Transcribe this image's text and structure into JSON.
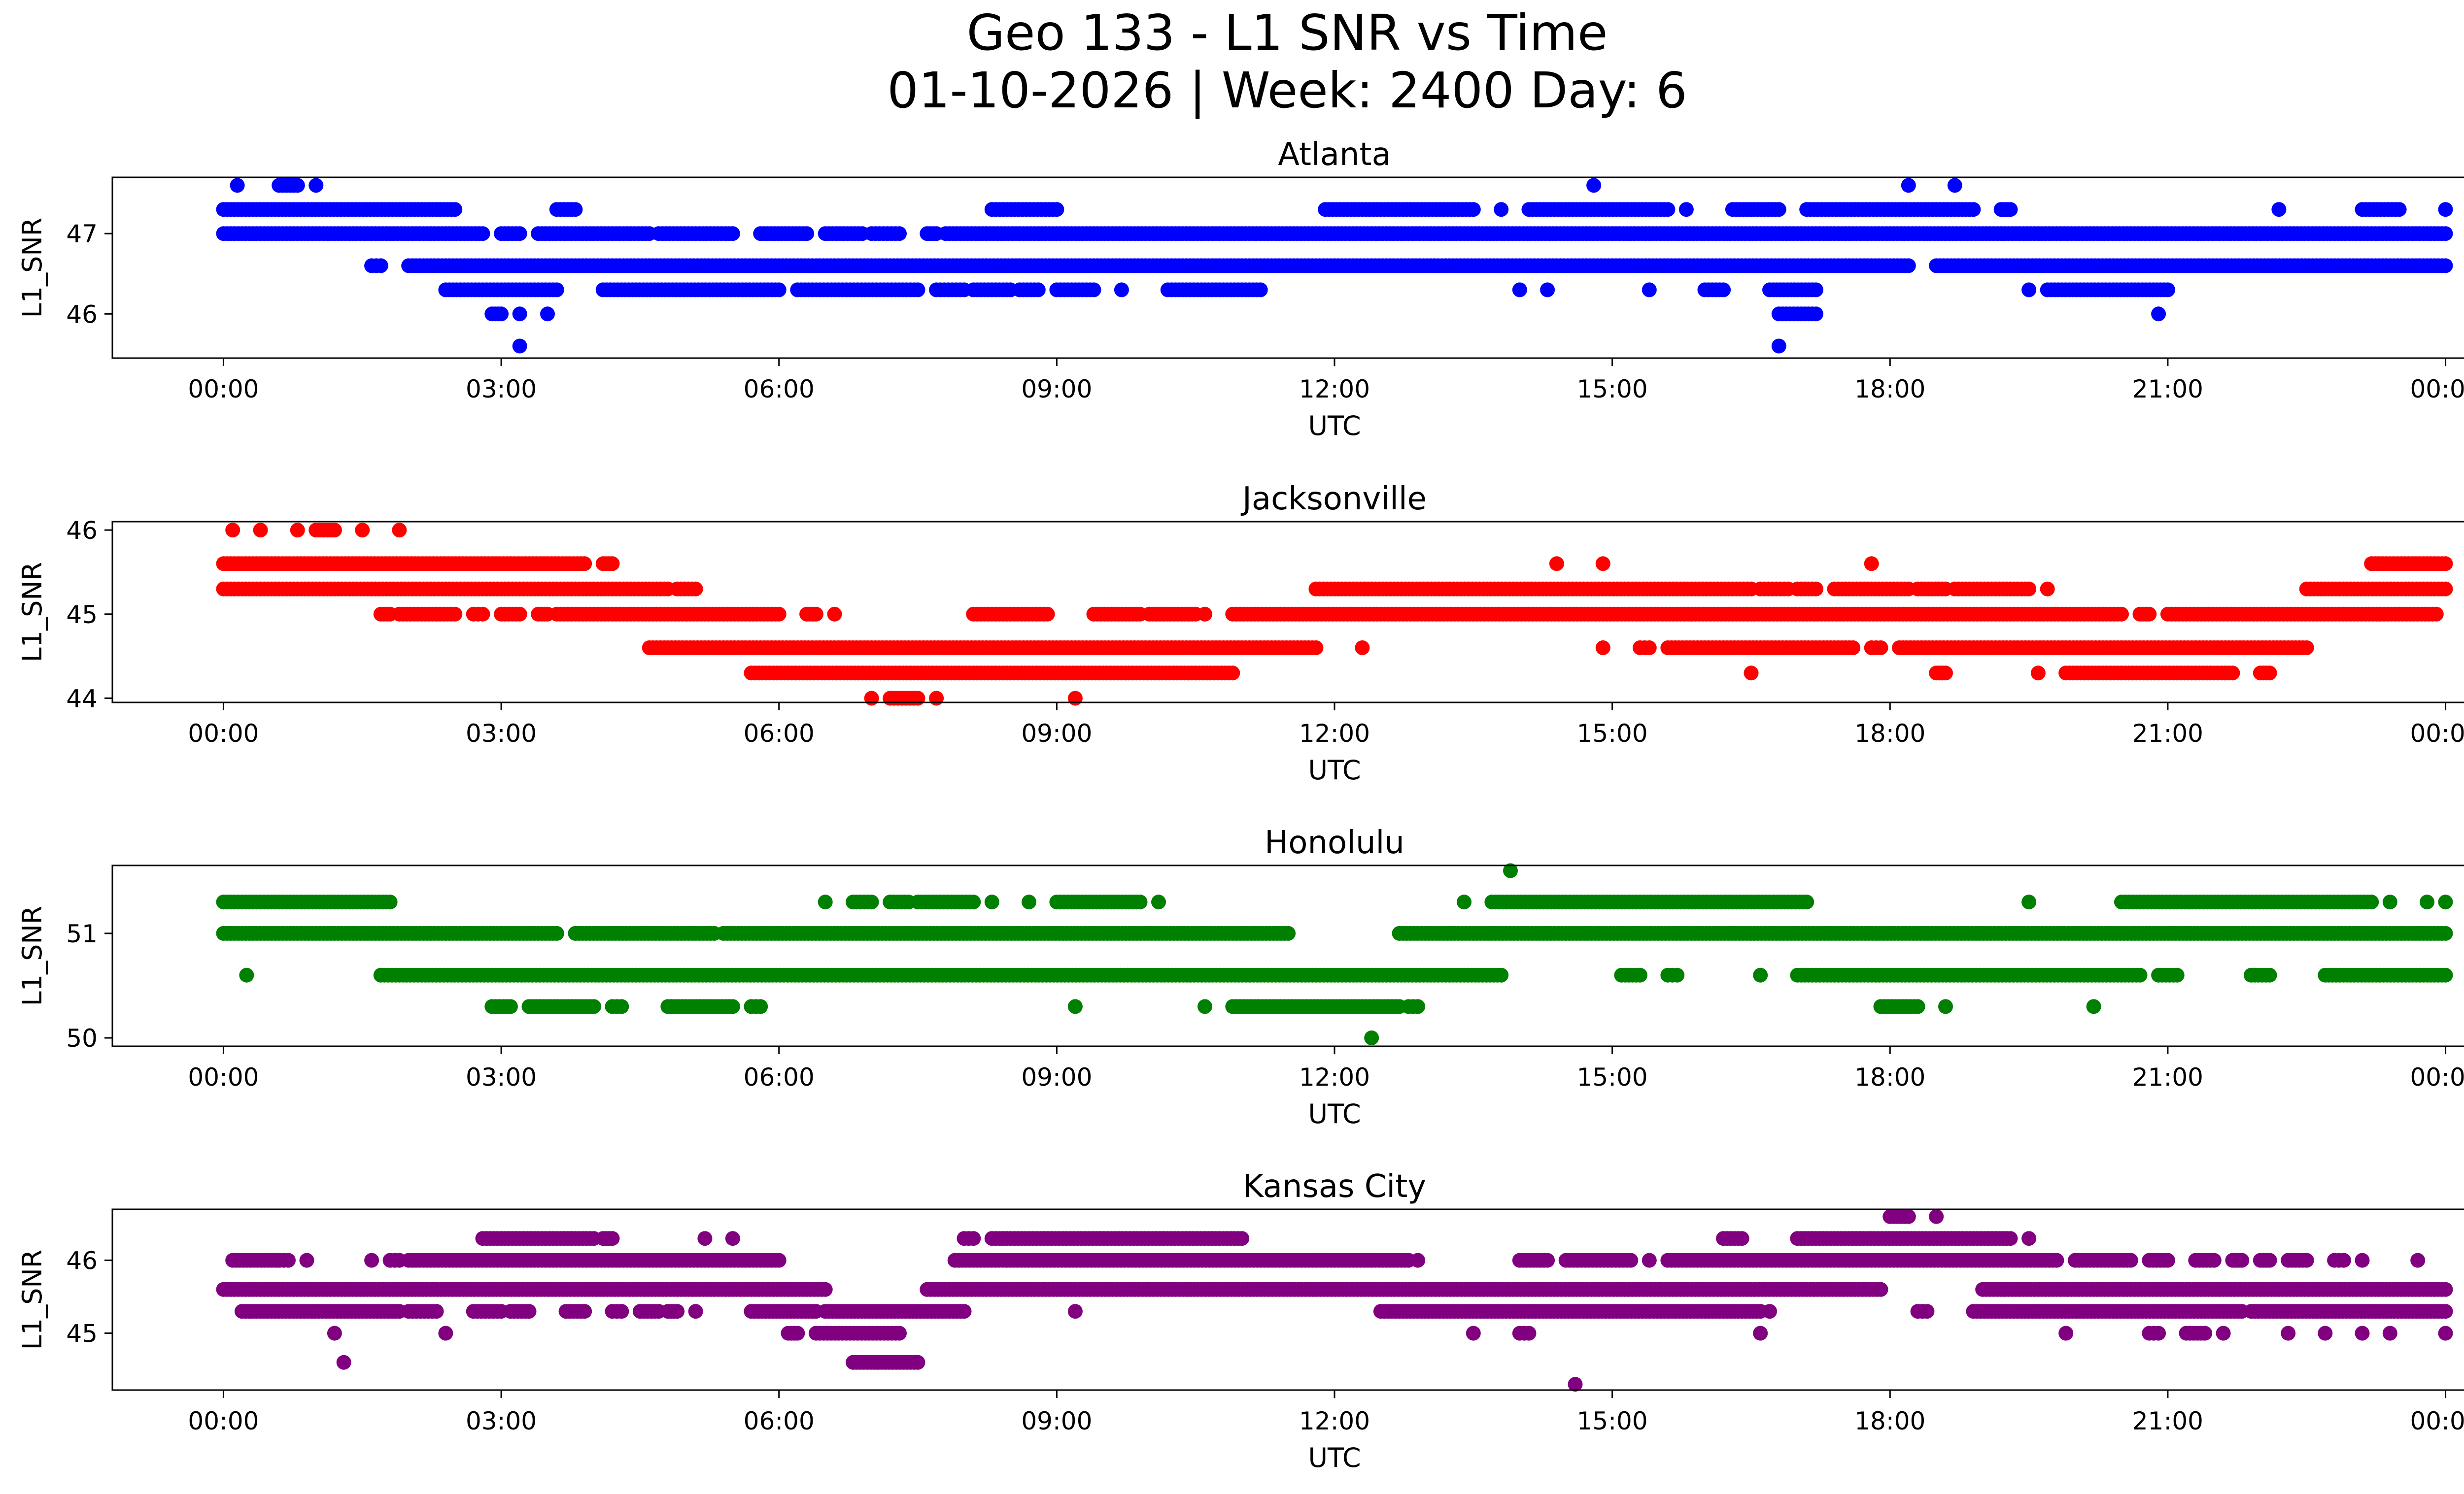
{
  "figure": {
    "title_line1": "Geo 133 - L1 SNR vs Time",
    "title_line2": "01-10-2026 | Week: 2400 Day: 6"
  },
  "chart_data": [
    {
      "type": "scatter",
      "title": "Atlanta",
      "xlabel": "UTC",
      "ylabel": "L1_SNR",
      "color": "#0000ff",
      "xlim_hours": [
        -1.2,
        25.2
      ],
      "ylim": [
        45.45,
        47.7
      ],
      "yticks": [
        46,
        47
      ],
      "xtick_hours": [
        0,
        3,
        6,
        9,
        12,
        15,
        18,
        21,
        24
      ],
      "xtick_labels": [
        "00:00",
        "03:00",
        "06:00",
        "09:00",
        "12:00",
        "15:00",
        "18:00",
        "21:00",
        "00:00"
      ],
      "level_step": 0.3,
      "series": [
        {
          "y": 47.6,
          "segments": [
            [
              0.15,
              0.15
            ],
            [
              0.6,
              0.8
            ],
            [
              1.0,
              1.0
            ],
            [
              14.8,
              14.8
            ],
            [
              18.2,
              18.2
            ],
            [
              18.7,
              18.7
            ]
          ]
        },
        {
          "y": 47.3,
          "segments": [
            [
              0,
              2.5
            ],
            [
              3.6,
              3.8
            ],
            [
              8.3,
              9.0
            ],
            [
              11.9,
              13.5
            ],
            [
              13.8,
              13.8
            ],
            [
              14.1,
              15.6
            ],
            [
              15.8,
              15.8
            ],
            [
              16.3,
              16.8
            ],
            [
              17.1,
              18.9
            ],
            [
              19.2,
              19.3
            ],
            [
              22.2,
              22.2
            ],
            [
              23.1,
              23.5
            ],
            [
              24,
              24
            ]
          ]
        },
        {
          "y": 47.0,
          "segments": [
            [
              0,
              2.8
            ],
            [
              3.0,
              3.2
            ],
            [
              3.4,
              4.6
            ],
            [
              4.7,
              5.5
            ],
            [
              5.8,
              6.3
            ],
            [
              6.5,
              6.9
            ],
            [
              7.0,
              7.3
            ],
            [
              7.6,
              7.7
            ],
            [
              7.8,
              24
            ]
          ]
        },
        {
          "y": 46.6,
          "segments": [
            [
              1.6,
              1.7
            ],
            [
              2.0,
              18.2
            ],
            [
              18.5,
              24
            ]
          ]
        },
        {
          "y": 46.3,
          "segments": [
            [
              2.4,
              3.6
            ],
            [
              4.1,
              6.0
            ],
            [
              6.2,
              7.5
            ],
            [
              7.7,
              8.0
            ],
            [
              8.1,
              8.5
            ],
            [
              8.6,
              8.8
            ],
            [
              9.0,
              9.4
            ],
            [
              9.7,
              9.7
            ],
            [
              10.2,
              11.2
            ],
            [
              14.0,
              14.0
            ],
            [
              14.3,
              14.3
            ],
            [
              15.4,
              15.4
            ],
            [
              16.0,
              16.2
            ],
            [
              16.7,
              17.2
            ],
            [
              19.5,
              19.5
            ],
            [
              19.7,
              21.0
            ]
          ]
        },
        {
          "y": 46.0,
          "segments": [
            [
              2.9,
              3.0
            ],
            [
              3.2,
              3.2
            ],
            [
              3.5,
              3.5
            ],
            [
              16.8,
              17.2
            ],
            [
              20.9,
              20.9
            ]
          ]
        },
        {
          "y": 45.6,
          "segments": [
            [
              3.2,
              3.2
            ],
            [
              16.8,
              16.8
            ]
          ]
        }
      ]
    },
    {
      "type": "scatter",
      "title": "Jacksonville",
      "xlabel": "UTC",
      "ylabel": "L1_SNR",
      "color": "#ff0000",
      "xlim_hours": [
        -1.2,
        25.2
      ],
      "ylim": [
        43.95,
        46.1
      ],
      "yticks": [
        44,
        45,
        46
      ],
      "xtick_hours": [
        0,
        3,
        6,
        9,
        12,
        15,
        18,
        21,
        24
      ],
      "xtick_labels": [
        "00:00",
        "03:00",
        "06:00",
        "09:00",
        "12:00",
        "15:00",
        "18:00",
        "21:00",
        "00:00"
      ],
      "level_step": 0.3,
      "series": [
        {
          "y": 46.0,
          "segments": [
            [
              0.1,
              0.1
            ],
            [
              0.4,
              0.4
            ],
            [
              0.8,
              0.8
            ],
            [
              1.0,
              1.2
            ],
            [
              1.5,
              1.5
            ],
            [
              1.9,
              1.9
            ]
          ]
        },
        {
          "y": 45.6,
          "segments": [
            [
              0,
              3.9
            ],
            [
              4.1,
              4.2
            ],
            [
              14.4,
              14.4
            ],
            [
              14.9,
              14.9
            ],
            [
              17.8,
              17.8
            ],
            [
              23.2,
              24
            ]
          ]
        },
        {
          "y": 45.3,
          "segments": [
            [
              0,
              4.8
            ],
            [
              4.9,
              5.1
            ],
            [
              11.8,
              16.5
            ],
            [
              16.6,
              16.9
            ],
            [
              17.0,
              17.2
            ],
            [
              17.4,
              18.2
            ],
            [
              18.3,
              18.6
            ],
            [
              18.7,
              19.5
            ],
            [
              19.7,
              19.7
            ],
            [
              22.5,
              24
            ]
          ]
        },
        {
          "y": 45.0,
          "segments": [
            [
              1.7,
              1.8
            ],
            [
              1.9,
              2.5
            ],
            [
              2.7,
              2.8
            ],
            [
              3.0,
              3.2
            ],
            [
              3.4,
              3.5
            ],
            [
              3.6,
              6.0
            ],
            [
              6.3,
              6.4
            ],
            [
              6.6,
              6.6
            ],
            [
              8.1,
              8.9
            ],
            [
              9.4,
              9.9
            ],
            [
              10.0,
              10.5
            ],
            [
              10.6,
              10.6
            ],
            [
              10.9,
              20.5
            ],
            [
              20.7,
              20.8
            ],
            [
              21.0,
              23.9
            ]
          ]
        },
        {
          "y": 44.6,
          "segments": [
            [
              4.6,
              11.8
            ],
            [
              12.3,
              12.3
            ],
            [
              14.9,
              14.9
            ],
            [
              15.3,
              15.4
            ],
            [
              15.6,
              17.6
            ],
            [
              17.8,
              17.9
            ],
            [
              18.1,
              22.5
            ]
          ]
        },
        {
          "y": 44.3,
          "segments": [
            [
              5.7,
              10.9
            ],
            [
              16.5,
              16.5
            ],
            [
              18.5,
              18.6
            ],
            [
              19.6,
              19.6
            ],
            [
              19.9,
              21.7
            ],
            [
              22.0,
              22.1
            ]
          ]
        },
        {
          "y": 44.0,
          "segments": [
            [
              7.0,
              7.0
            ],
            [
              7.2,
              7.5
            ],
            [
              7.7,
              7.7
            ],
            [
              9.2,
              9.2
            ]
          ]
        }
      ]
    },
    {
      "type": "scatter",
      "title": "Honolulu",
      "xlabel": "UTC",
      "ylabel": "L1_SNR",
      "color": "#008000",
      "xlim_hours": [
        -1.2,
        25.2
      ],
      "ylim": [
        49.92,
        51.65
      ],
      "yticks": [
        50,
        51
      ],
      "xtick_hours": [
        0,
        3,
        6,
        9,
        12,
        15,
        18,
        21,
        24
      ],
      "xtick_labels": [
        "00:00",
        "03:00",
        "06:00",
        "09:00",
        "12:00",
        "15:00",
        "18:00",
        "21:00",
        "00:00"
      ],
      "level_step": 0.3,
      "series": [
        {
          "y": 51.6,
          "segments": [
            [
              13.9,
              13.9
            ]
          ]
        },
        {
          "y": 51.3,
          "segments": [
            [
              0,
              1.8
            ],
            [
              6.5,
              6.5
            ],
            [
              6.8,
              7.0
            ],
            [
              7.2,
              7.4
            ],
            [
              7.5,
              8.1
            ],
            [
              8.3,
              8.3
            ],
            [
              8.7,
              8.7
            ],
            [
              9.0,
              9.9
            ],
            [
              10.1,
              10.1
            ],
            [
              13.4,
              13.4
            ],
            [
              13.7,
              17.1
            ],
            [
              19.5,
              19.5
            ],
            [
              20.5,
              23.2
            ],
            [
              23.4,
              23.4
            ],
            [
              23.8,
              23.8
            ],
            [
              24,
              24
            ]
          ]
        },
        {
          "y": 51.0,
          "segments": [
            [
              0,
              3.6
            ],
            [
              3.8,
              5.3
            ],
            [
              5.4,
              11.5
            ],
            [
              12.7,
              24
            ]
          ]
        },
        {
          "y": 50.6,
          "segments": [
            [
              0.25,
              0.25
            ],
            [
              1.7,
              13.8
            ],
            [
              15.1,
              15.3
            ],
            [
              15.6,
              15.7
            ],
            [
              16.6,
              16.6
            ],
            [
              17.0,
              20.7
            ],
            [
              20.9,
              21.1
            ],
            [
              21.9,
              22.1
            ],
            [
              22.7,
              24
            ]
          ]
        },
        {
          "y": 50.3,
          "segments": [
            [
              2.9,
              3.1
            ],
            [
              3.3,
              4.0
            ],
            [
              4.2,
              4.3
            ],
            [
              4.8,
              5.5
            ],
            [
              5.7,
              5.8
            ],
            [
              9.2,
              9.2
            ],
            [
              10.6,
              10.6
            ],
            [
              10.9,
              12.7
            ],
            [
              12.8,
              12.9
            ],
            [
              17.9,
              18.3
            ],
            [
              18.6,
              18.6
            ],
            [
              20.2,
              20.2
            ]
          ]
        },
        {
          "y": 50.0,
          "segments": [
            [
              12.4,
              12.4
            ]
          ]
        }
      ]
    },
    {
      "type": "scatter",
      "title": "Kansas City",
      "xlabel": "UTC",
      "ylabel": "L1_SNR",
      "color": "#800080",
      "xlim_hours": [
        -1.2,
        25.2
      ],
      "ylim": [
        44.22,
        46.7
      ],
      "yticks": [
        45,
        46
      ],
      "xtick_hours": [
        0,
        3,
        6,
        9,
        12,
        15,
        18,
        21,
        24
      ],
      "xtick_labels": [
        "00:00",
        "03:00",
        "06:00",
        "09:00",
        "12:00",
        "15:00",
        "18:00",
        "21:00",
        "00:00"
      ],
      "level_step": 0.3,
      "series": [
        {
          "y": 46.6,
          "segments": [
            [
              18.0,
              18.2
            ],
            [
              18.5,
              18.5
            ]
          ]
        },
        {
          "y": 46.3,
          "segments": [
            [
              2.8,
              4.0
            ],
            [
              4.1,
              4.2
            ],
            [
              5.2,
              5.2
            ],
            [
              5.5,
              5.5
            ],
            [
              8.0,
              8.1
            ],
            [
              8.3,
              11.0
            ],
            [
              16.2,
              16.4
            ],
            [
              17.0,
              19.3
            ],
            [
              19.5,
              19.5
            ]
          ]
        },
        {
          "y": 46.0,
          "segments": [
            [
              0.1,
              0.6
            ],
            [
              0.6,
              0.7
            ],
            [
              0.9,
              0.9
            ],
            [
              1.6,
              1.6
            ],
            [
              1.8,
              1.9
            ],
            [
              2.0,
              6.0
            ],
            [
              7.9,
              12.8
            ],
            [
              12.9,
              12.9
            ],
            [
              14.0,
              14.3
            ],
            [
              14.5,
              15.2
            ],
            [
              15.4,
              15.4
            ],
            [
              15.6,
              19.8
            ],
            [
              20.0,
              20.6
            ],
            [
              20.8,
              21.0
            ],
            [
              21.3,
              21.5
            ],
            [
              21.7,
              21.8
            ],
            [
              22.0,
              22.1
            ],
            [
              22.3,
              22.5
            ],
            [
              22.8,
              22.9
            ],
            [
              23.1,
              23.1
            ],
            [
              23.7,
              23.7
            ]
          ]
        },
        {
          "y": 45.6,
          "segments": [
            [
              0,
              6.5
            ],
            [
              7.6,
              17.9
            ],
            [
              19.0,
              24
            ]
          ]
        },
        {
          "y": 45.3,
          "segments": [
            [
              0.2,
              1.9
            ],
            [
              2.0,
              2.3
            ],
            [
              2.7,
              3.0
            ],
            [
              3.1,
              3.3
            ],
            [
              3.7,
              3.9
            ],
            [
              4.2,
              4.3
            ],
            [
              4.5,
              4.7
            ],
            [
              4.8,
              4.9
            ],
            [
              5.1,
              5.1
            ],
            [
              5.7,
              6.4
            ],
            [
              6.5,
              8.0
            ],
            [
              9.2,
              9.2
            ],
            [
              12.5,
              16.6
            ],
            [
              16.7,
              16.7
            ],
            [
              18.3,
              18.4
            ],
            [
              18.9,
              21.8
            ],
            [
              21.9,
              24
            ]
          ]
        },
        {
          "y": 45.0,
          "segments": [
            [
              1.2,
              1.2
            ],
            [
              2.4,
              2.4
            ],
            [
              6.1,
              6.2
            ],
            [
              6.4,
              7.3
            ],
            [
              13.5,
              13.5
            ],
            [
              14.0,
              14.1
            ],
            [
              16.6,
              16.6
            ],
            [
              19.9,
              19.9
            ],
            [
              20.8,
              20.9
            ],
            [
              21.2,
              21.4
            ],
            [
              21.6,
              21.6
            ],
            [
              22.3,
              22.3
            ],
            [
              22.7,
              22.7
            ],
            [
              23.1,
              23.1
            ],
            [
              23.4,
              23.4
            ],
            [
              24,
              24
            ]
          ]
        },
        {
          "y": 44.6,
          "segments": [
            [
              1.3,
              1.3
            ],
            [
              6.8,
              7.5
            ]
          ]
        },
        {
          "y": 44.3,
          "segments": [
            [
              14.6,
              14.6
            ]
          ]
        }
      ]
    }
  ]
}
